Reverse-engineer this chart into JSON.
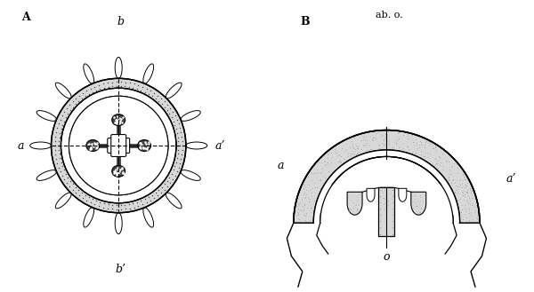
{
  "background_color": "#ffffff",
  "label_A": "A",
  "label_B": "B",
  "label_a_left": "a",
  "label_a1_right_A": "a’",
  "label_b_top": "b",
  "label_b1_bottom": "b’",
  "label_a_B": "a",
  "label_a1_B": "a’",
  "label_ab_o": "ab. o.",
  "label_o": "o",
  "fig_width": 6.0,
  "fig_height": 3.29,
  "dpi": 100,
  "gray_fill": "#cccccc",
  "dark_gray": "#444444",
  "black": "#000000",
  "light_gray": "#d8d8d8",
  "stipple_gray": "#888888"
}
